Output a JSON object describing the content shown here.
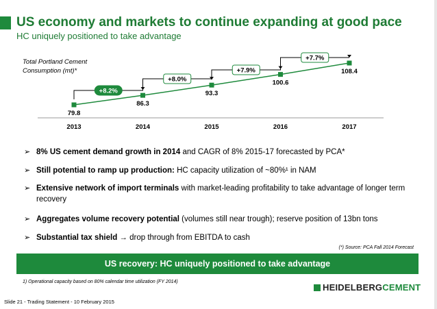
{
  "header": {
    "title": "US economy and markets to continue expanding at good pace",
    "subtitle": "HC uniquely positioned to take advantage"
  },
  "chart_label": {
    "line1": "Total Portland Cement",
    "line2": "Consumption (mt)*"
  },
  "chart_data": {
    "type": "line",
    "categories": [
      "2013",
      "2014",
      "2015",
      "2016",
      "2017"
    ],
    "values": [
      79.8,
      86.3,
      93.3,
      100.6,
      108.4
    ],
    "growth_labels": [
      "+8.2%",
      "+8.0%",
      "+7.9%",
      "+7.7%"
    ],
    "title": "Total Portland Cement Consumption (mt)*",
    "xlabel": "",
    "ylabel": "",
    "ylim": [
      75,
      112
    ],
    "grid": false,
    "colors": {
      "line": "#1e8a3c",
      "marker": "#1e8a3c",
      "highlight_fill": "#1e8a3c",
      "box_border": "#1e8a3c"
    }
  },
  "bullets": [
    {
      "bold": "8% US cement demand growth in 2014",
      "rest": " and CAGR of 8% 2015-17 forecasted by PCA*"
    },
    {
      "bold": "Still potential to ramp up production:",
      "rest": " HC capacity utilization of ~80%¹ in NAM"
    },
    {
      "bold": "Extensive network of import terminals",
      "rest": " with market-leading profitability to take advantage of longer term recovery"
    },
    {
      "bold": "Aggregates volume recovery potential",
      "rest": " (volumes still near trough); reserve position of 13bn tons"
    },
    {
      "bold": "Substantial tax shield",
      "rest": " → drop through from EBITDA to cash"
    }
  ],
  "bullet_icon": "arrowhead-icon",
  "source_note": "(*) Source: PCA Fall 2014 Forecast",
  "banner": "US recovery: HC uniquely positioned to take advantage",
  "footnote": "1) Operational capacity based on 80% calendar time utilization (FY 2014)",
  "slide_footer": "Slide 21 - Trading Statement - 10 February 2015",
  "logo": {
    "part1": "HEIDELBERG",
    "part2": "CEMENT"
  },
  "colors": {
    "brand_green": "#1e8a3c",
    "title_green": "#1e7b34"
  }
}
